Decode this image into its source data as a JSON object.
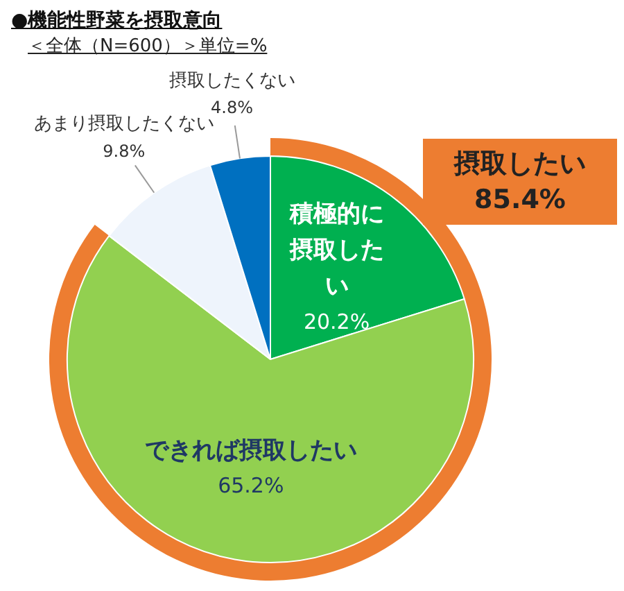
{
  "chart_data": {
    "type": "pie",
    "title": "●機能性野菜を摂取意向",
    "subtitle": "＜全体（N=600）＞単位=%",
    "categories": [
      "積極的に摂取したい",
      "できれば摂取したい",
      "あまり摂取したくない",
      "摂取したくない"
    ],
    "values": [
      20.2,
      65.2,
      9.8,
      4.8
    ],
    "colors": [
      "#00b050",
      "#92d050",
      "#eef4fc",
      "#0070c0"
    ],
    "value_labels": [
      "20.2%",
      "65.2%",
      "9.8%",
      "4.8%"
    ],
    "annotations": [
      "摂取したい\n85.4%"
    ],
    "legend": false
  }
}
